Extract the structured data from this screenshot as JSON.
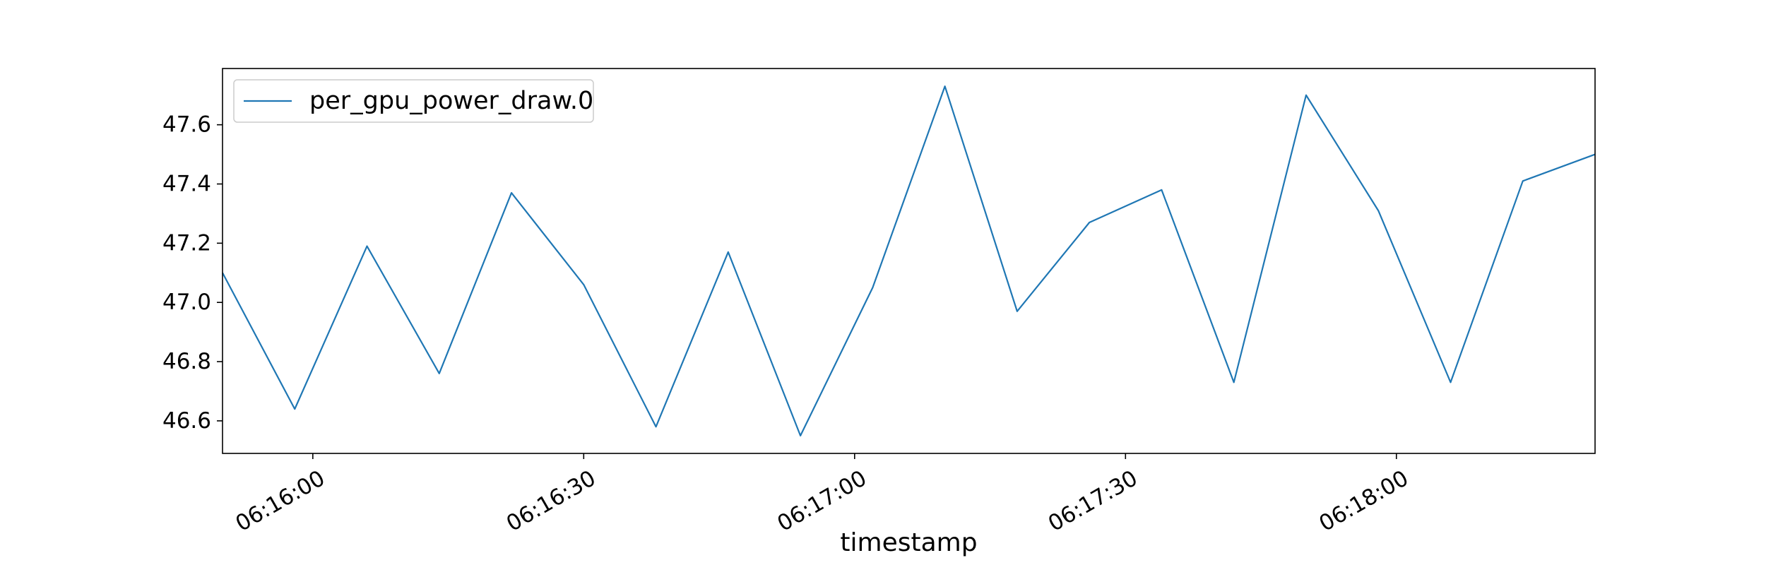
{
  "chart_data": {
    "type": "line",
    "title": "",
    "xlabel": "timestamp",
    "ylabel": "",
    "x": [
      "06:15:50",
      "06:15:58",
      "06:16:06",
      "06:16:14",
      "06:16:22",
      "06:16:30",
      "06:16:38",
      "06:16:46",
      "06:16:54",
      "06:17:02",
      "06:17:10",
      "06:17:18",
      "06:17:26",
      "06:17:34",
      "06:17:42",
      "06:17:50",
      "06:17:58",
      "06:18:06",
      "06:18:14",
      "06:18:22"
    ],
    "series": [
      {
        "name": "per_gpu_power_draw.0",
        "color": "#1f77b4",
        "values": [
          47.1,
          46.64,
          47.19,
          46.76,
          47.37,
          47.06,
          46.58,
          47.17,
          46.55,
          47.05,
          47.73,
          46.97,
          47.27,
          47.38,
          46.73,
          47.7,
          47.31,
          46.73,
          47.41,
          47.5
        ]
      }
    ],
    "xlim": [
      "06:15:50",
      "06:18:22"
    ],
    "ylim": [
      46.49,
      47.79
    ],
    "x_ticks": [
      "06:16:00",
      "06:16:30",
      "06:17:00",
      "06:17:30",
      "06:18:00"
    ],
    "y_ticks": [
      "46.6",
      "46.8",
      "47.0",
      "47.2",
      "47.4",
      "47.6"
    ],
    "legend_position": "upper left",
    "grid": false
  }
}
